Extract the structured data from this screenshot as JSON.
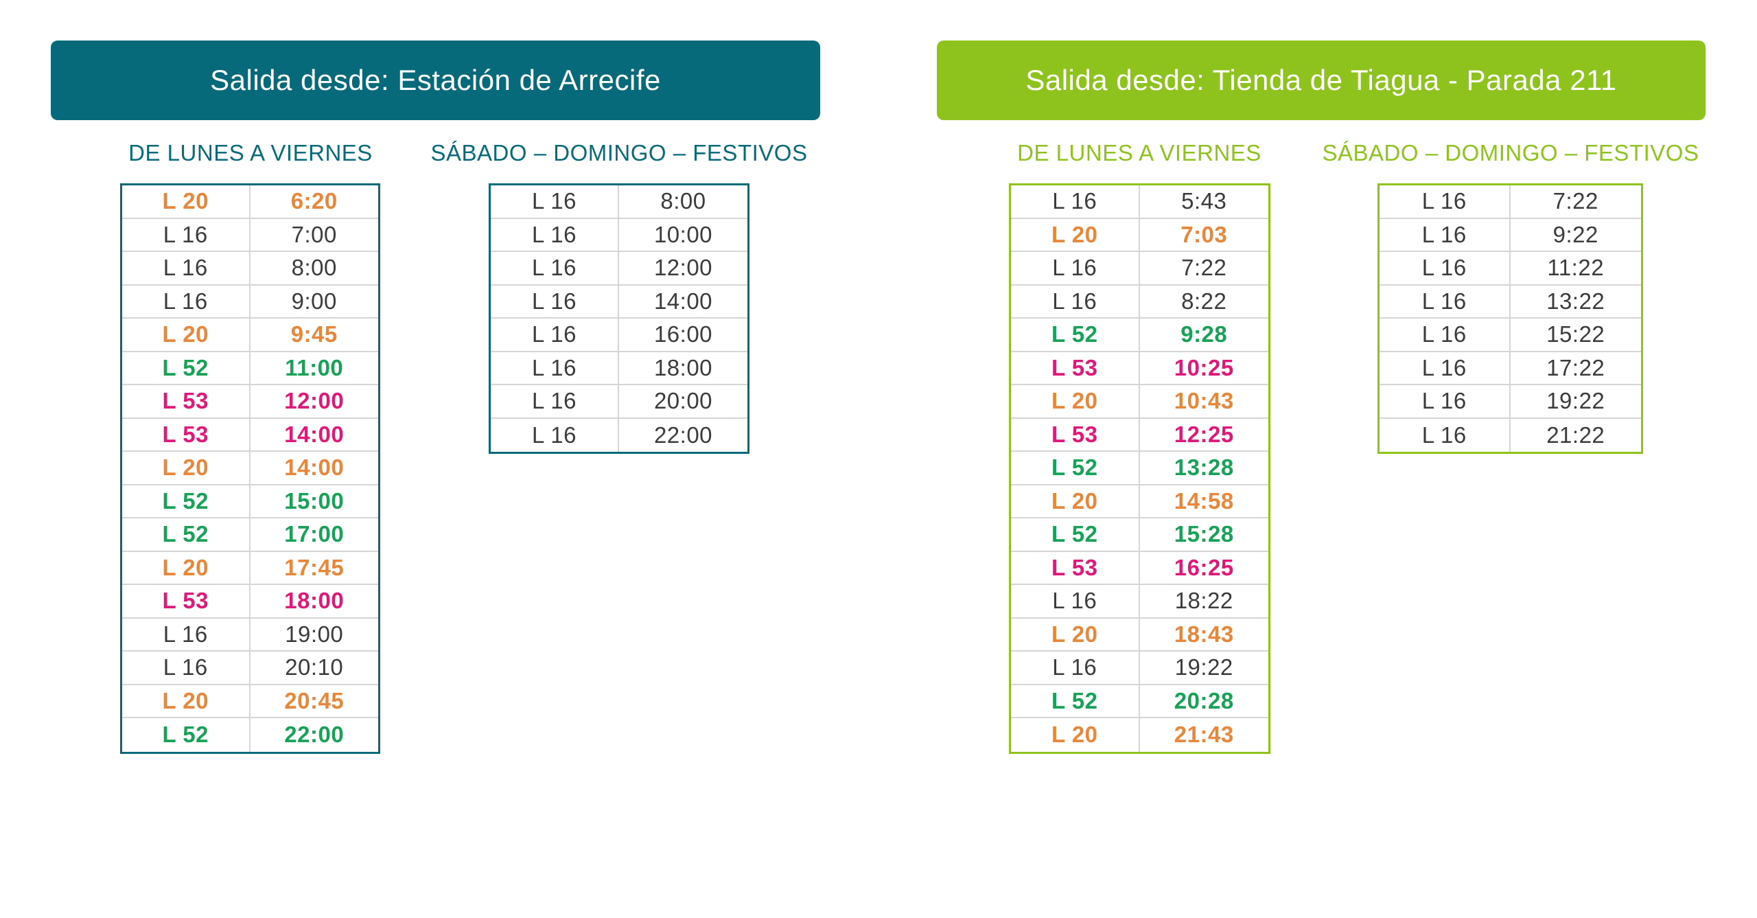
{
  "colors": {
    "teal": "#076a7b",
    "green": "#8ec31e",
    "line_dark": "#3b3b3b",
    "line_orange": "#e8863a",
    "line_green": "#17a257",
    "line_pink": "#df1879",
    "row_divider": "#d5d5d5",
    "banner_text": "#ffffff"
  },
  "sections": [
    {
      "id": "arrecife",
      "title": "Salida desde: Estación de Arrecife",
      "accent": "#076a7b",
      "weekday_header": "DE LUNES A VIERNES",
      "weekend_header": "SÁBADO – DOMINGO – FESTIVOS",
      "weekday_rows": [
        {
          "line": "L 20",
          "time": "6:20",
          "color": "orange"
        },
        {
          "line": "L 16",
          "time": "7:00",
          "color": "dark"
        },
        {
          "line": "L 16",
          "time": "8:00",
          "color": "dark"
        },
        {
          "line": "L 16",
          "time": "9:00",
          "color": "dark"
        },
        {
          "line": "L 20",
          "time": "9:45",
          "color": "orange"
        },
        {
          "line": "L 52",
          "time": "11:00",
          "color": "green"
        },
        {
          "line": "L 53",
          "time": "12:00",
          "color": "pink"
        },
        {
          "line": "L 53",
          "time": "14:00",
          "color": "pink"
        },
        {
          "line": "L 20",
          "time": "14:00",
          "color": "orange"
        },
        {
          "line": "L 52",
          "time": "15:00",
          "color": "green"
        },
        {
          "line": "L 52",
          "time": "17:00",
          "color": "green"
        },
        {
          "line": "L 20",
          "time": "17:45",
          "color": "orange"
        },
        {
          "line": "L 53",
          "time": "18:00",
          "color": "pink"
        },
        {
          "line": "L 16",
          "time": "19:00",
          "color": "dark"
        },
        {
          "line": "L 16",
          "time": "20:10",
          "color": "dark"
        },
        {
          "line": "L 20",
          "time": "20:45",
          "color": "orange"
        },
        {
          "line": "L 52",
          "time": "22:00",
          "color": "green"
        }
      ],
      "weekend_rows": [
        {
          "line": "L 16",
          "time": "8:00",
          "color": "dark"
        },
        {
          "line": "L 16",
          "time": "10:00",
          "color": "dark"
        },
        {
          "line": "L 16",
          "time": "12:00",
          "color": "dark"
        },
        {
          "line": "L 16",
          "time": "14:00",
          "color": "dark"
        },
        {
          "line": "L 16",
          "time": "16:00",
          "color": "dark"
        },
        {
          "line": "L 16",
          "time": "18:00",
          "color": "dark"
        },
        {
          "line": "L 16",
          "time": "20:00",
          "color": "dark"
        },
        {
          "line": "L 16",
          "time": "22:00",
          "color": "dark"
        }
      ]
    },
    {
      "id": "tiagua",
      "title": "Salida desde: Tienda de Tiagua - Parada 211",
      "accent": "#8ec31e",
      "weekday_header": "DE LUNES A VIERNES",
      "weekend_header": "SÁBADO – DOMINGO – FESTIVOS",
      "weekday_rows": [
        {
          "line": "L 16",
          "time": "5:43",
          "color": "dark"
        },
        {
          "line": "L 20",
          "time": "7:03",
          "color": "orange"
        },
        {
          "line": "L 16",
          "time": "7:22",
          "color": "dark"
        },
        {
          "line": "L 16",
          "time": "8:22",
          "color": "dark"
        },
        {
          "line": "L 52",
          "time": "9:28",
          "color": "green"
        },
        {
          "line": "L 53",
          "time": "10:25",
          "color": "pink"
        },
        {
          "line": "L 20",
          "time": "10:43",
          "color": "orange"
        },
        {
          "line": "L 53",
          "time": "12:25",
          "color": "pink"
        },
        {
          "line": "L 52",
          "time": "13:28",
          "color": "green"
        },
        {
          "line": "L 20",
          "time": "14:58",
          "color": "orange"
        },
        {
          "line": "L 52",
          "time": "15:28",
          "color": "green"
        },
        {
          "line": "L 53",
          "time": "16:25",
          "color": "pink"
        },
        {
          "line": "L 16",
          "time": "18:22",
          "color": "dark"
        },
        {
          "line": "L 20",
          "time": "18:43",
          "color": "orange"
        },
        {
          "line": "L 16",
          "time": "19:22",
          "color": "dark"
        },
        {
          "line": "L 52",
          "time": "20:28",
          "color": "green"
        },
        {
          "line": "L 20",
          "time": "21:43",
          "color": "orange"
        }
      ],
      "weekend_rows": [
        {
          "line": "L 16",
          "time": "7:22",
          "color": "dark"
        },
        {
          "line": "L 16",
          "time": "9:22",
          "color": "dark"
        },
        {
          "line": "L 16",
          "time": "11:22",
          "color": "dark"
        },
        {
          "line": "L 16",
          "time": "13:22",
          "color": "dark"
        },
        {
          "line": "L 16",
          "time": "15:22",
          "color": "dark"
        },
        {
          "line": "L 16",
          "time": "17:22",
          "color": "dark"
        },
        {
          "line": "L 16",
          "time": "19:22",
          "color": "dark"
        },
        {
          "line": "L 16",
          "time": "21:22",
          "color": "dark"
        }
      ]
    }
  ]
}
